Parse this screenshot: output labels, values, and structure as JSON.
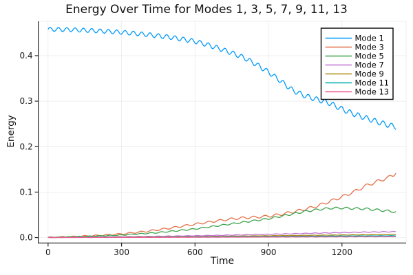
{
  "chart_data": {
    "type": "line",
    "title": "Energy Over Time for Modes 1, 3, 5, 7, 9, 11, 13",
    "xlabel": "Time",
    "ylabel": "Energy",
    "xlim": [
      -40,
      1462
    ],
    "ylim": [
      -0.012,
      0.4755
    ],
    "grid": true,
    "legend_position": "top-right",
    "x_ticks": {
      "values": [
        0,
        300,
        600,
        900,
        1200
      ],
      "labels": [
        "0",
        "300",
        "600",
        "900",
        "1200"
      ]
    },
    "y_ticks": {
      "values": [
        0,
        0.1,
        0.2,
        0.3,
        0.4
      ],
      "labels": [
        "0.0",
        "0.1",
        "0.2",
        "0.3",
        "0.4"
      ]
    },
    "series": [
      {
        "name": "Mode 1",
        "color": "#009AFA",
        "ripple": {
          "period": 34,
          "amp": [
            0.0045,
            0.006
          ],
          "phase": 0
        },
        "points": [
          [
            0,
            0.458
          ],
          [
            100,
            0.457
          ],
          [
            200,
            0.4545
          ],
          [
            300,
            0.4515
          ],
          [
            400,
            0.4465
          ],
          [
            500,
            0.4405
          ],
          [
            600,
            0.4315
          ],
          [
            650,
            0.424
          ],
          [
            700,
            0.4155
          ],
          [
            750,
            0.406
          ],
          [
            800,
            0.3955
          ],
          [
            850,
            0.381
          ],
          [
            900,
            0.364
          ],
          [
            950,
            0.344
          ],
          [
            1000,
            0.3235
          ],
          [
            1050,
            0.3115
          ],
          [
            1100,
            0.3035
          ],
          [
            1150,
            0.2955
          ],
          [
            1200,
            0.2825
          ],
          [
            1250,
            0.2715
          ],
          [
            1300,
            0.2625
          ],
          [
            1350,
            0.2535
          ],
          [
            1390,
            0.2475
          ],
          [
            1420,
            0.2435
          ]
        ]
      },
      {
        "name": "Mode 3",
        "color": "#E36F47",
        "ripple": {
          "period": 46,
          "amp": [
            0.001,
            0.0035
          ],
          "phase": 0
        },
        "points": [
          [
            0,
            0.0005
          ],
          [
            100,
            0.002
          ],
          [
            200,
            0.0045
          ],
          [
            300,
            0.008
          ],
          [
            400,
            0.0135
          ],
          [
            500,
            0.021
          ],
          [
            600,
            0.0295
          ],
          [
            700,
            0.0375
          ],
          [
            750,
            0.041
          ],
          [
            800,
            0.0435
          ],
          [
            850,
            0.045
          ],
          [
            900,
            0.047
          ],
          [
            950,
            0.051
          ],
          [
            1000,
            0.0565
          ],
          [
            1050,
            0.0625
          ],
          [
            1100,
            0.0695
          ],
          [
            1150,
            0.0795
          ],
          [
            1200,
            0.0895
          ],
          [
            1250,
            0.101
          ],
          [
            1300,
            0.1145
          ],
          [
            1350,
            0.1245
          ],
          [
            1390,
            0.132
          ],
          [
            1410,
            0.1375
          ],
          [
            1420,
            0.144
          ]
        ]
      },
      {
        "name": "Mode 5",
        "color": "#3DA44D",
        "ripple": {
          "period": 42,
          "amp": [
            0.0005,
            0.0025
          ],
          "phase": 1.5
        },
        "points": [
          [
            0,
            0.0003
          ],
          [
            150,
            0.0025
          ],
          [
            300,
            0.0055
          ],
          [
            450,
            0.011
          ],
          [
            600,
            0.019
          ],
          [
            700,
            0.0265
          ],
          [
            800,
            0.034
          ],
          [
            900,
            0.0415
          ],
          [
            1000,
            0.052
          ],
          [
            1050,
            0.0575
          ],
          [
            1100,
            0.0615
          ],
          [
            1150,
            0.0645
          ],
          [
            1200,
            0.065
          ],
          [
            1250,
            0.064
          ],
          [
            1300,
            0.063
          ],
          [
            1350,
            0.0605
          ],
          [
            1420,
            0.0565
          ]
        ]
      },
      {
        "name": "Mode 7",
        "color": "#C271D2",
        "ripple": {
          "period": 40,
          "amp": [
            0.0002,
            0.0008
          ],
          "phase": 0
        },
        "points": [
          [
            0,
            0.0002
          ],
          [
            300,
            0.0018
          ],
          [
            600,
            0.004
          ],
          [
            800,
            0.006
          ],
          [
            1000,
            0.0085
          ],
          [
            1200,
            0.011
          ],
          [
            1300,
            0.012
          ],
          [
            1420,
            0.013
          ]
        ]
      },
      {
        "name": "Mode 9",
        "color": "#AC8D18",
        "ripple": {
          "period": 40,
          "amp": [
            0.0001,
            0.0004
          ],
          "phase": 0.8
        },
        "points": [
          [
            0,
            0.0001
          ],
          [
            300,
            0.001
          ],
          [
            600,
            0.0022
          ],
          [
            900,
            0.004
          ],
          [
            1200,
            0.0058
          ],
          [
            1420,
            0.0068
          ]
        ]
      },
      {
        "name": "Mode 11",
        "color": "#00AAAE",
        "ripple": {
          "period": 40,
          "amp": [
            0.0001,
            0.0003
          ],
          "phase": 1.6
        },
        "points": [
          [
            0,
            0.0001
          ],
          [
            300,
            0.0006
          ],
          [
            600,
            0.0014
          ],
          [
            900,
            0.0024
          ],
          [
            1200,
            0.0034
          ],
          [
            1420,
            0.004
          ]
        ]
      },
      {
        "name": "Mode 13",
        "color": "#ED5E93",
        "ripple": {
          "period": 40,
          "amp": [
            5e-05,
            0.0002
          ],
          "phase": 2.4
        },
        "points": [
          [
            0,
            0.0
          ],
          [
            300,
            0.0003
          ],
          [
            600,
            0.0007
          ],
          [
            900,
            0.0012
          ],
          [
            1200,
            0.0016
          ],
          [
            1420,
            0.0019
          ]
        ]
      }
    ]
  },
  "colors": {
    "background": "#FFFFFF",
    "grid": "rgba(0,0,0,0.09)",
    "plot_border": "rgba(0,0,0,0.09)",
    "axis": "#26262B",
    "tick_text": "#191919",
    "legend_border": "#000000",
    "legend_background": "#FFFFFF",
    "legend_text": "#000000"
  }
}
